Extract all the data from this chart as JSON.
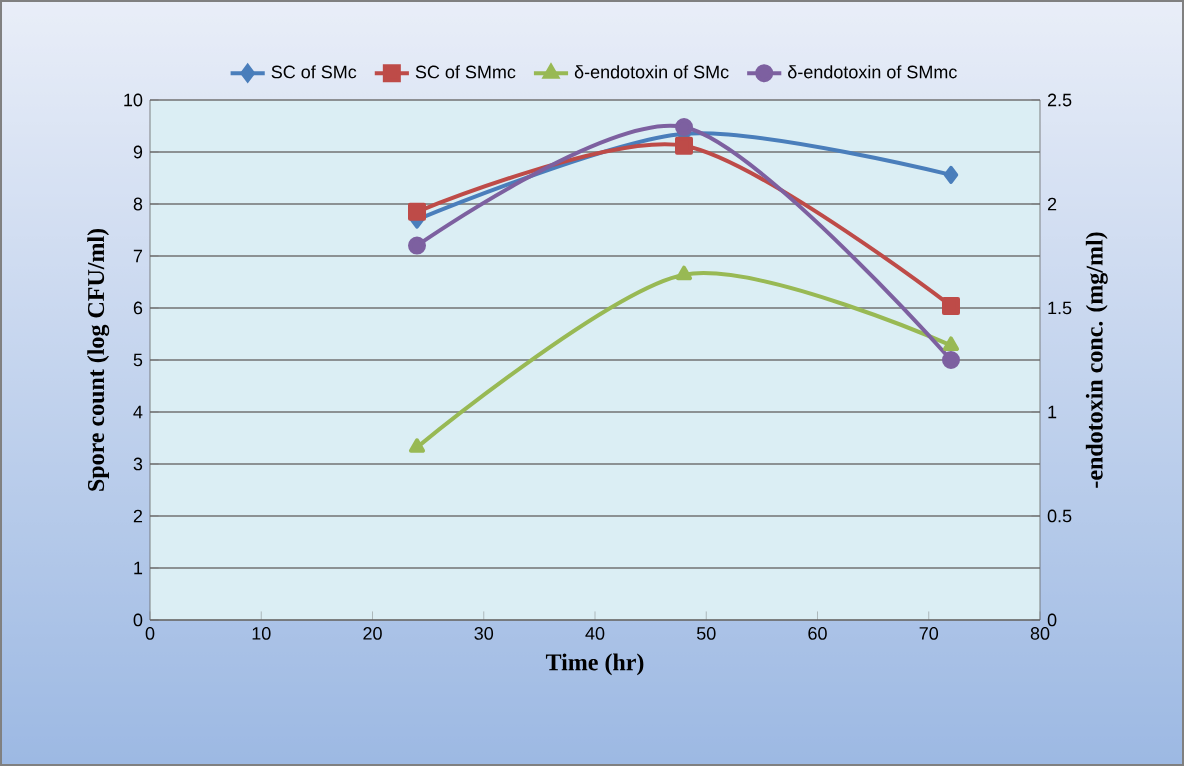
{
  "chart_data": {
    "type": "line",
    "xlabel": "Time (hr)",
    "ylabel": "Spore count (log CFU/ml)",
    "y2label": "-endotoxin conc. (mg/ml)",
    "x": [
      24,
      48,
      72
    ],
    "series": [
      {
        "name": "SC of SMc",
        "color": "#4a7ebb",
        "marker": "diamond",
        "values": [
          7.7,
          9.35,
          8.56
        ]
      },
      {
        "name": "SC of SMmc",
        "color": "#be4b48",
        "marker": "square",
        "values": [
          7.85,
          9.12,
          6.04
        ]
      },
      {
        "name": "δ-endotoxin of SMc",
        "color": "#98b954",
        "marker": "triangle",
        "axis": "y2",
        "values": [
          0.83,
          1.66,
          1.32
        ]
      },
      {
        "name": "δ-endotoxin of SMmc",
        "color": "#7d60a0",
        "marker": "circle",
        "axis": "y2",
        "values": [
          1.8,
          2.37,
          1.25
        ]
      }
    ],
    "xlim": [
      0,
      80
    ],
    "xticks": [
      0,
      10,
      20,
      30,
      40,
      50,
      60,
      70,
      80
    ],
    "ylim": [
      0,
      10
    ],
    "yticks": [
      0,
      1,
      2,
      3,
      4,
      5,
      6,
      7,
      8,
      9,
      10
    ],
    "y2lim": [
      0,
      2.5
    ],
    "y2ticks": [
      0,
      0.5,
      1,
      1.5,
      2,
      2.5
    ],
    "grid": "y",
    "legend": "top"
  }
}
